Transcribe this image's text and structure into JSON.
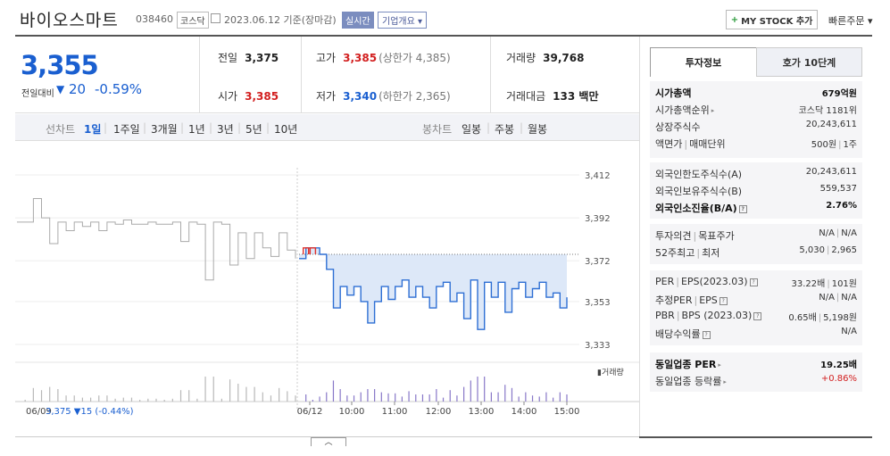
{
  "header": {
    "name": "바이오스마트",
    "code": "038460",
    "market": "코스닥",
    "date": "2023.06.12  기준(장마감)",
    "realtime": "실시간",
    "company_info": "기업개요",
    "mystock": "MY STOCK 추가",
    "quick_order": "빠른주문"
  },
  "price": {
    "current": "3,355",
    "change_label": "전일대비",
    "change": "20",
    "change_pct": "-0.59%"
  },
  "stats": {
    "prev_label": "전일",
    "prev": "3,375",
    "open_label": "시가",
    "open": "3,385",
    "high_label": "고가",
    "high": "3,385",
    "upper_limit": "(상한가 4,385)",
    "low_label": "저가",
    "low": "3,340",
    "lower_limit": "(하한가 2,365)",
    "volume_label": "거래량",
    "volume": "39,768",
    "amount_label": "거래대금",
    "amount": "133 백만"
  },
  "tabs": {
    "line_label": "선차트",
    "periods": [
      "1일",
      "1주일",
      "3개월",
      "1년",
      "3년",
      "5년",
      "10년"
    ],
    "selected": "1일",
    "candle_label": "봉차트",
    "candles": [
      "일봉",
      "주봉",
      "월봉"
    ]
  },
  "chart_data": {
    "type": "line",
    "y_ticks": [
      "3,412",
      "3,392",
      "3,372",
      "3,353",
      "3,333"
    ],
    "y_tick_values": [
      3412,
      3392,
      3372,
      3353,
      3333
    ],
    "ylim": [
      3333,
      3412
    ],
    "x_ticks": [
      "06/09",
      "06/12",
      "10:00",
      "11:00",
      "12:00",
      "13:00",
      "14:00",
      "15:00"
    ],
    "prev_close": 3375,
    "prev_day_caption": "06/09  3,375 ▼15 (-0.44%)",
    "volume_legend": "거래량",
    "series": [
      {
        "name": "06/09",
        "values": [
          3390,
          3390,
          3401,
          3392,
          3380,
          3390,
          3386,
          3390,
          3388,
          3390,
          3386,
          3390,
          3389,
          3391,
          3389,
          3389,
          3390,
          3389,
          3389,
          3390,
          3381,
          3390,
          3389,
          3363,
          3390,
          3389,
          3370,
          3385,
          3373,
          3385,
          3378,
          3374,
          3385,
          3377,
          3373
        ]
      },
      {
        "name": "06/12",
        "values": [
          3373,
          3378,
          3378,
          3375,
          3368,
          3350,
          3360,
          3356,
          3360,
          3353,
          3343,
          3353,
          3360,
          3354,
          3360,
          3363,
          3355,
          3360,
          3355,
          3350,
          3360,
          3362,
          3353,
          3357,
          3345,
          3363,
          3340,
          3362,
          3355,
          3362,
          3348,
          3359,
          3362,
          3355,
          3359,
          3362,
          3355,
          3357,
          3350,
          3355
        ]
      }
    ]
  },
  "right_panel": {
    "tab_active": "투자정보",
    "tab_other": "호가 10단계",
    "market_cap_label": "시가총액",
    "market_cap": "679억원",
    "cap_rank_label": "시가총액순위",
    "cap_rank": "코스닥 1181위",
    "shares_label": "상장주식수",
    "shares": "20,243,611",
    "par_label": "액면가",
    "unit_label": "매매단위",
    "par": "500원",
    "unit": "1주",
    "foreign_limit_label": "외국인한도주식수(A)",
    "foreign_limit": "20,243,611",
    "foreign_hold_label": "외국인보유주식수(B)",
    "foreign_hold": "559,537",
    "foreign_ratio_label": "외국인소진율(B/A)",
    "foreign_ratio": "2.76%",
    "opinion_label": "투자의견",
    "target_label": "목표주가",
    "opinion": "N/A",
    "target": "N/A",
    "w52_label": "52주최고",
    "w52_low_label": "최저",
    "w52_high": "5,030",
    "w52_low": "2,965",
    "per_label": "PER",
    "eps_label": "EPS(2023.03)",
    "per": "33.22배",
    "eps": "101원",
    "est_per_label": "추정PER",
    "est_eps_label": "EPS",
    "est_per": "N/A",
    "est_eps": "N/A",
    "pbr_label": "PBR",
    "bps_label": "BPS (2023.03)",
    "pbr": "0.65배",
    "bps": "5,198원",
    "div_label": "배당수익률",
    "div": "N/A",
    "sector_per_label": "동일업종 PER",
    "sector_per": "19.25배",
    "sector_chg_label": "동일업종 등락률",
    "sector_chg": "+0.86%"
  }
}
